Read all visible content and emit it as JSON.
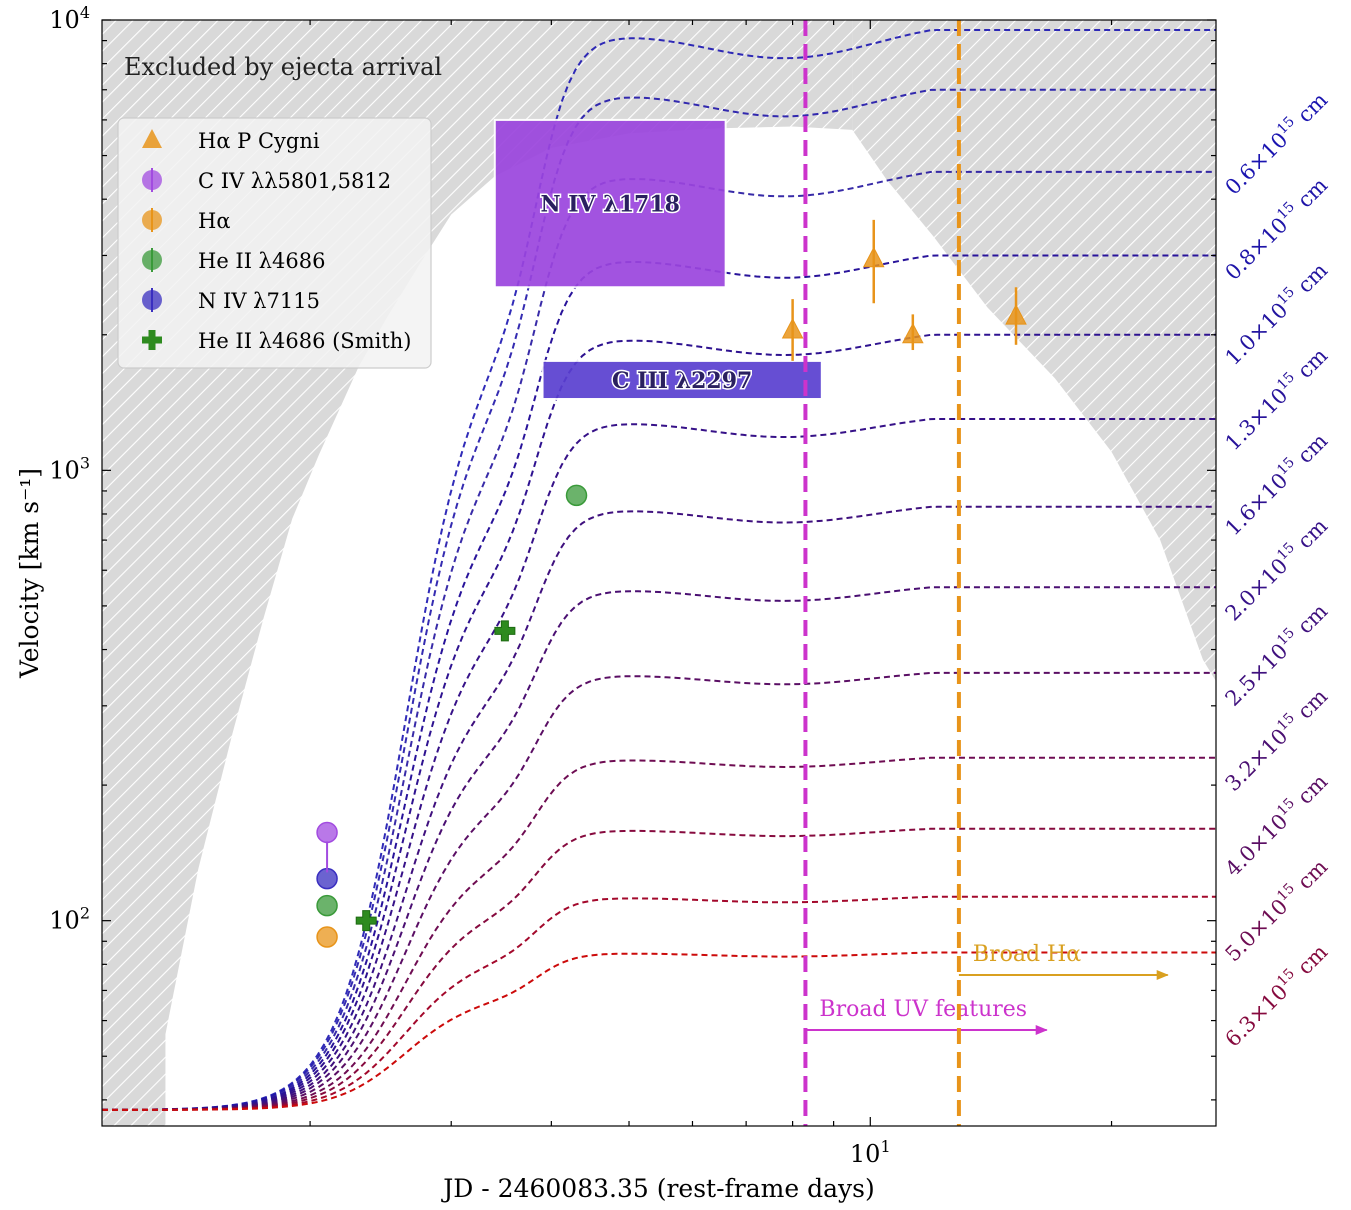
{
  "chart_data": {
    "type": "line",
    "title": "",
    "xlabel": "JD - 2460083.35 (rest-frame days)",
    "ylabel": "Velocity [km s⁻¹]",
    "x_scale": "log",
    "y_scale": "log",
    "xlim": [
      1.1,
      27
    ],
    "ylim": [
      35,
      10000
    ],
    "x_ticks": [
      {
        "value": 10,
        "label": "10¹"
      }
    ],
    "y_ticks": [
      {
        "value": 100,
        "label": "10²"
      },
      {
        "value": 1000,
        "label": "10³"
      },
      {
        "value": 10000,
        "label": "10⁴"
      }
    ],
    "grid": false,
    "legend_placement": "upper-left",
    "excluded_region_label": "Excluded by ejecta arrival",
    "colors": {
      "halpha": "#e8941a",
      "civ": "#a24be0",
      "heii": "#3a9a3a",
      "niv": "#3a2fc0",
      "heii_smith": "#2e8b1f",
      "uv_line": "#cc33cc",
      "ha_line": "#e8941a",
      "niv_box": "#9b45de",
      "ciii_box": "#5a3fd0",
      "hatch": "#d8d8d8"
    },
    "legend": [
      {
        "label": "Hα P Cygni",
        "marker": "triangle",
        "color": "#e8941a"
      },
      {
        "label": "C IV λλ5801,5812",
        "marker": "circle",
        "color": "#a24be0"
      },
      {
        "label": "Hα",
        "marker": "circle",
        "color": "#e8941a"
      },
      {
        "label": "He II λ4686",
        "marker": "circle",
        "color": "#3a9a3a"
      },
      {
        "label": "N IV λ7115",
        "marker": "circle",
        "color": "#3a2fc0"
      },
      {
        "label": "He II λ4686 (Smith)",
        "marker": "plus",
        "color": "#2e8b1f"
      }
    ],
    "radius_curves": [
      {
        "label": "0.6×10¹⁵ cm",
        "plateau": 9500,
        "color": "#1a14b0"
      },
      {
        "label": "0.8×10¹⁵ cm",
        "plateau": 7000,
        "color": "#1e14a8"
      },
      {
        "label": "1.0×10¹⁵ cm",
        "plateau": 4600,
        "color": "#22149f"
      },
      {
        "label": "1.3×10¹⁵ cm",
        "plateau": 3000,
        "color": "#28139a"
      },
      {
        "label": "1.6×10¹⁵ cm",
        "plateau": 2000,
        "color": "#2e1290"
      },
      {
        "label": "2.0×10¹⁵ cm",
        "plateau": 1300,
        "color": "#361188"
      },
      {
        "label": "2.5×10¹⁵ cm",
        "plateau": 830,
        "color": "#3f107e"
      },
      {
        "label": "3.2×10¹⁵ cm",
        "plateau": 550,
        "color": "#4a0f72"
      },
      {
        "label": "4.0×10¹⁵ cm",
        "plateau": 355,
        "color": "#5a0e64"
      },
      {
        "label": "5.0×10¹⁵ cm",
        "plateau": 230,
        "color": "#6e0c52"
      },
      {
        "label": "6.3×10¹⁵ cm",
        "plateau": 160,
        "color": "#860a3e"
      },
      {
        "label": "",
        "plateau": 113,
        "color": "#a3082b"
      },
      {
        "label": "",
        "plateau": 85,
        "color": "#cc0a0a"
      }
    ],
    "series": [
      {
        "name": "Hα P Cygni",
        "marker": "triangle",
        "points": [
          {
            "x": 8.0,
            "y": 2050,
            "ylo": 1750,
            "yhi": 2400
          },
          {
            "x": 10.1,
            "y": 2950,
            "ylo": 2350,
            "yhi": 3600
          },
          {
            "x": 11.3,
            "y": 2000,
            "ylo": 1850,
            "yhi": 2220
          },
          {
            "x": 15.2,
            "y": 2200,
            "ylo": 1900,
            "yhi": 2550
          }
        ]
      },
      {
        "name": "C IV λλ5801,5812",
        "marker": "circle",
        "points": [
          {
            "x": 2.1,
            "y": 157
          }
        ]
      },
      {
        "name": "Hα",
        "marker": "circle",
        "points": [
          {
            "x": 2.1,
            "y": 92
          }
        ]
      },
      {
        "name": "He II λ4686",
        "marker": "circle",
        "points": [
          {
            "x": 2.1,
            "y": 108
          },
          {
            "x": 4.3,
            "y": 880
          }
        ]
      },
      {
        "name": "N IV λ7115",
        "marker": "circle",
        "points": [
          {
            "x": 2.1,
            "y": 124
          }
        ]
      },
      {
        "name": "He II λ4686 (Smith)",
        "marker": "plus",
        "points": [
          {
            "x": 2.35,
            "y": 100
          },
          {
            "x": 3.5,
            "y": 440
          }
        ]
      }
    ],
    "boxes": [
      {
        "label": "N IV λ1718",
        "x0": 3.4,
        "x1": 6.6,
        "y0": 2550,
        "y1": 6000,
        "color": "#9b45de"
      },
      {
        "label": "C III λ2297",
        "x0": 3.9,
        "x1": 8.7,
        "y0": 1440,
        "y1": 1750,
        "color": "#5a3fd0"
      }
    ],
    "vlines": [
      {
        "x": 8.3,
        "label": "Broad UV features",
        "color": "#cc33cc",
        "arrow_to": 16.6
      },
      {
        "x": 12.9,
        "label": "Broad Hα",
        "color": "#e8941a",
        "arrow_to": 23.5
      }
    ]
  }
}
